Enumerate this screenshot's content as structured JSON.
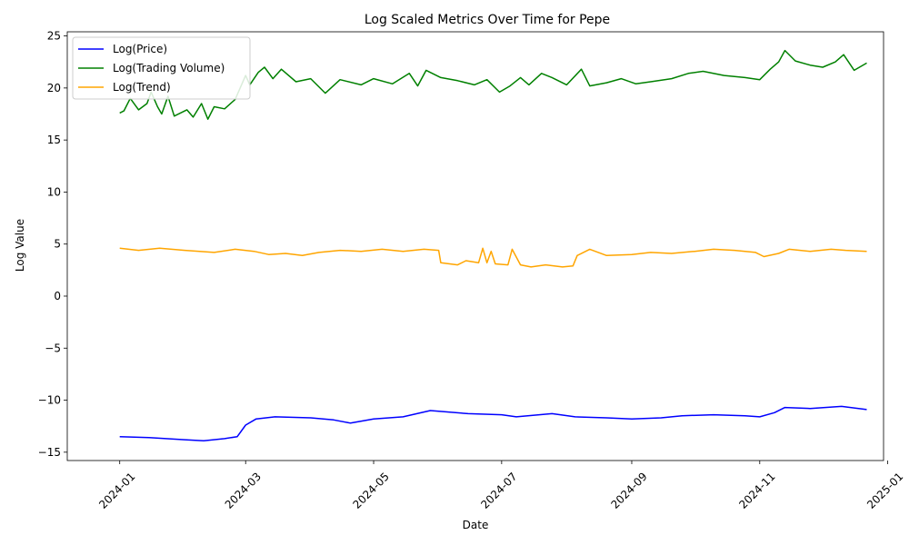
{
  "chart_data": {
    "type": "line",
    "title": "Log Scaled Metrics Over Time for Pepe",
    "xlabel": "Date",
    "ylabel": "Log Value",
    "xlim": [
      "2023-12-07",
      "2024-12-30"
    ],
    "ylim": [
      -15.8,
      25.4
    ],
    "x_ticks": [
      "2024-01",
      "2024-03",
      "2024-05",
      "2024-07",
      "2024-09",
      "2024-11",
      "2025-01"
    ],
    "y_ticks": [
      -15,
      -10,
      -5,
      0,
      5,
      10,
      15,
      20,
      25
    ],
    "grid": false,
    "legend_position": "upper-left",
    "series": [
      {
        "name": "Log(Price)",
        "color": "#0000ff",
        "points": [
          [
            "2024-01-01",
            -13.5
          ],
          [
            "2024-01-15",
            -13.6
          ],
          [
            "2024-02-01",
            -13.8
          ],
          [
            "2024-02-10",
            -13.9
          ],
          [
            "2024-02-20",
            -13.7
          ],
          [
            "2024-02-26",
            -13.5
          ],
          [
            "2024-03-01",
            -12.4
          ],
          [
            "2024-03-06",
            -11.8
          ],
          [
            "2024-03-15",
            -11.6
          ],
          [
            "2024-04-01",
            -11.7
          ],
          [
            "2024-04-12",
            -11.9
          ],
          [
            "2024-04-20",
            -12.2
          ],
          [
            "2024-05-01",
            -11.8
          ],
          [
            "2024-05-15",
            -11.6
          ],
          [
            "2024-05-28",
            -11.0
          ],
          [
            "2024-06-15",
            -11.3
          ],
          [
            "2024-07-01",
            -11.4
          ],
          [
            "2024-07-08",
            -11.6
          ],
          [
            "2024-07-25",
            -11.3
          ],
          [
            "2024-08-05",
            -11.6
          ],
          [
            "2024-08-20",
            -11.7
          ],
          [
            "2024-09-01",
            -11.8
          ],
          [
            "2024-09-15",
            -11.7
          ],
          [
            "2024-09-25",
            -11.5
          ],
          [
            "2024-10-10",
            -11.4
          ],
          [
            "2024-10-25",
            -11.5
          ],
          [
            "2024-11-01",
            -11.6
          ],
          [
            "2024-11-08",
            -11.2
          ],
          [
            "2024-11-13",
            -10.7
          ],
          [
            "2024-11-25",
            -10.8
          ],
          [
            "2024-12-10",
            -10.6
          ],
          [
            "2024-12-22",
            -10.9
          ]
        ]
      },
      {
        "name": "Log(Trading Volume)",
        "color": "#008000",
        "points": [
          [
            "2024-01-01",
            17.6
          ],
          [
            "2024-01-03",
            17.8
          ],
          [
            "2024-01-06",
            19.0
          ],
          [
            "2024-01-10",
            17.9
          ],
          [
            "2024-01-14",
            18.5
          ],
          [
            "2024-01-16",
            19.6
          ],
          [
            "2024-01-19",
            18.2
          ],
          [
            "2024-01-21",
            17.5
          ],
          [
            "2024-01-24",
            19.2
          ],
          [
            "2024-01-27",
            17.3
          ],
          [
            "2024-02-02",
            17.9
          ],
          [
            "2024-02-05",
            17.2
          ],
          [
            "2024-02-09",
            18.5
          ],
          [
            "2024-02-12",
            17.0
          ],
          [
            "2024-02-15",
            18.2
          ],
          [
            "2024-02-20",
            18.0
          ],
          [
            "2024-02-25",
            18.9
          ],
          [
            "2024-03-01",
            21.2
          ],
          [
            "2024-03-03",
            20.3
          ],
          [
            "2024-03-07",
            21.5
          ],
          [
            "2024-03-10",
            22.0
          ],
          [
            "2024-03-14",
            20.9
          ],
          [
            "2024-03-18",
            21.8
          ],
          [
            "2024-03-25",
            20.6
          ],
          [
            "2024-04-01",
            20.9
          ],
          [
            "2024-04-08",
            19.5
          ],
          [
            "2024-04-15",
            20.8
          ],
          [
            "2024-04-25",
            20.3
          ],
          [
            "2024-05-01",
            20.9
          ],
          [
            "2024-05-10",
            20.4
          ],
          [
            "2024-05-18",
            21.4
          ],
          [
            "2024-05-22",
            20.2
          ],
          [
            "2024-05-26",
            21.7
          ],
          [
            "2024-06-02",
            21.0
          ],
          [
            "2024-06-10",
            20.7
          ],
          [
            "2024-06-18",
            20.3
          ],
          [
            "2024-06-24",
            20.8
          ],
          [
            "2024-06-30",
            19.6
          ],
          [
            "2024-07-05",
            20.2
          ],
          [
            "2024-07-10",
            21.0
          ],
          [
            "2024-07-14",
            20.3
          ],
          [
            "2024-07-20",
            21.4
          ],
          [
            "2024-07-25",
            21.0
          ],
          [
            "2024-08-01",
            20.3
          ],
          [
            "2024-08-08",
            21.8
          ],
          [
            "2024-08-12",
            20.2
          ],
          [
            "2024-08-20",
            20.5
          ],
          [
            "2024-08-27",
            20.9
          ],
          [
            "2024-09-03",
            20.4
          ],
          [
            "2024-09-10",
            20.6
          ],
          [
            "2024-09-20",
            20.9
          ],
          [
            "2024-09-28",
            21.4
          ],
          [
            "2024-10-05",
            21.6
          ],
          [
            "2024-10-15",
            21.2
          ],
          [
            "2024-10-25",
            21.0
          ],
          [
            "2024-11-01",
            20.8
          ],
          [
            "2024-11-06",
            21.8
          ],
          [
            "2024-11-10",
            22.5
          ],
          [
            "2024-11-13",
            23.6
          ],
          [
            "2024-11-18",
            22.6
          ],
          [
            "2024-11-25",
            22.2
          ],
          [
            "2024-12-01",
            22.0
          ],
          [
            "2024-12-07",
            22.5
          ],
          [
            "2024-12-11",
            23.2
          ],
          [
            "2024-12-16",
            21.7
          ],
          [
            "2024-12-22",
            22.4
          ]
        ]
      },
      {
        "name": "Log(Trend)",
        "color": "#ffa500",
        "points": [
          [
            "2024-01-01",
            4.6
          ],
          [
            "2024-01-10",
            4.4
          ],
          [
            "2024-01-20",
            4.6
          ],
          [
            "2024-02-01",
            4.4
          ],
          [
            "2024-02-15",
            4.2
          ],
          [
            "2024-02-25",
            4.5
          ],
          [
            "2024-03-05",
            4.3
          ],
          [
            "2024-03-12",
            4.0
          ],
          [
            "2024-03-20",
            4.1
          ],
          [
            "2024-03-28",
            3.9
          ],
          [
            "2024-04-05",
            4.2
          ],
          [
            "2024-04-15",
            4.4
          ],
          [
            "2024-04-25",
            4.3
          ],
          [
            "2024-05-05",
            4.5
          ],
          [
            "2024-05-15",
            4.3
          ],
          [
            "2024-05-25",
            4.5
          ],
          [
            "2024-06-01",
            4.4
          ],
          [
            "2024-06-02",
            3.2
          ],
          [
            "2024-06-10",
            3.0
          ],
          [
            "2024-06-14",
            3.4
          ],
          [
            "2024-06-20",
            3.2
          ],
          [
            "2024-06-22",
            4.6
          ],
          [
            "2024-06-24",
            3.2
          ],
          [
            "2024-06-26",
            4.3
          ],
          [
            "2024-06-28",
            3.1
          ],
          [
            "2024-07-04",
            3.0
          ],
          [
            "2024-07-06",
            4.5
          ],
          [
            "2024-07-10",
            3.0
          ],
          [
            "2024-07-15",
            2.8
          ],
          [
            "2024-07-22",
            3.0
          ],
          [
            "2024-07-30",
            2.8
          ],
          [
            "2024-08-04",
            2.9
          ],
          [
            "2024-08-06",
            3.9
          ],
          [
            "2024-08-12",
            4.5
          ],
          [
            "2024-08-20",
            3.9
          ],
          [
            "2024-09-01",
            4.0
          ],
          [
            "2024-09-10",
            4.2
          ],
          [
            "2024-09-20",
            4.1
          ],
          [
            "2024-10-01",
            4.3
          ],
          [
            "2024-10-10",
            4.5
          ],
          [
            "2024-10-20",
            4.4
          ],
          [
            "2024-10-30",
            4.2
          ],
          [
            "2024-11-03",
            3.8
          ],
          [
            "2024-11-10",
            4.1
          ],
          [
            "2024-11-15",
            4.5
          ],
          [
            "2024-11-25",
            4.3
          ],
          [
            "2024-12-05",
            4.5
          ],
          [
            "2024-12-12",
            4.4
          ],
          [
            "2024-12-22",
            4.3
          ]
        ]
      }
    ]
  }
}
